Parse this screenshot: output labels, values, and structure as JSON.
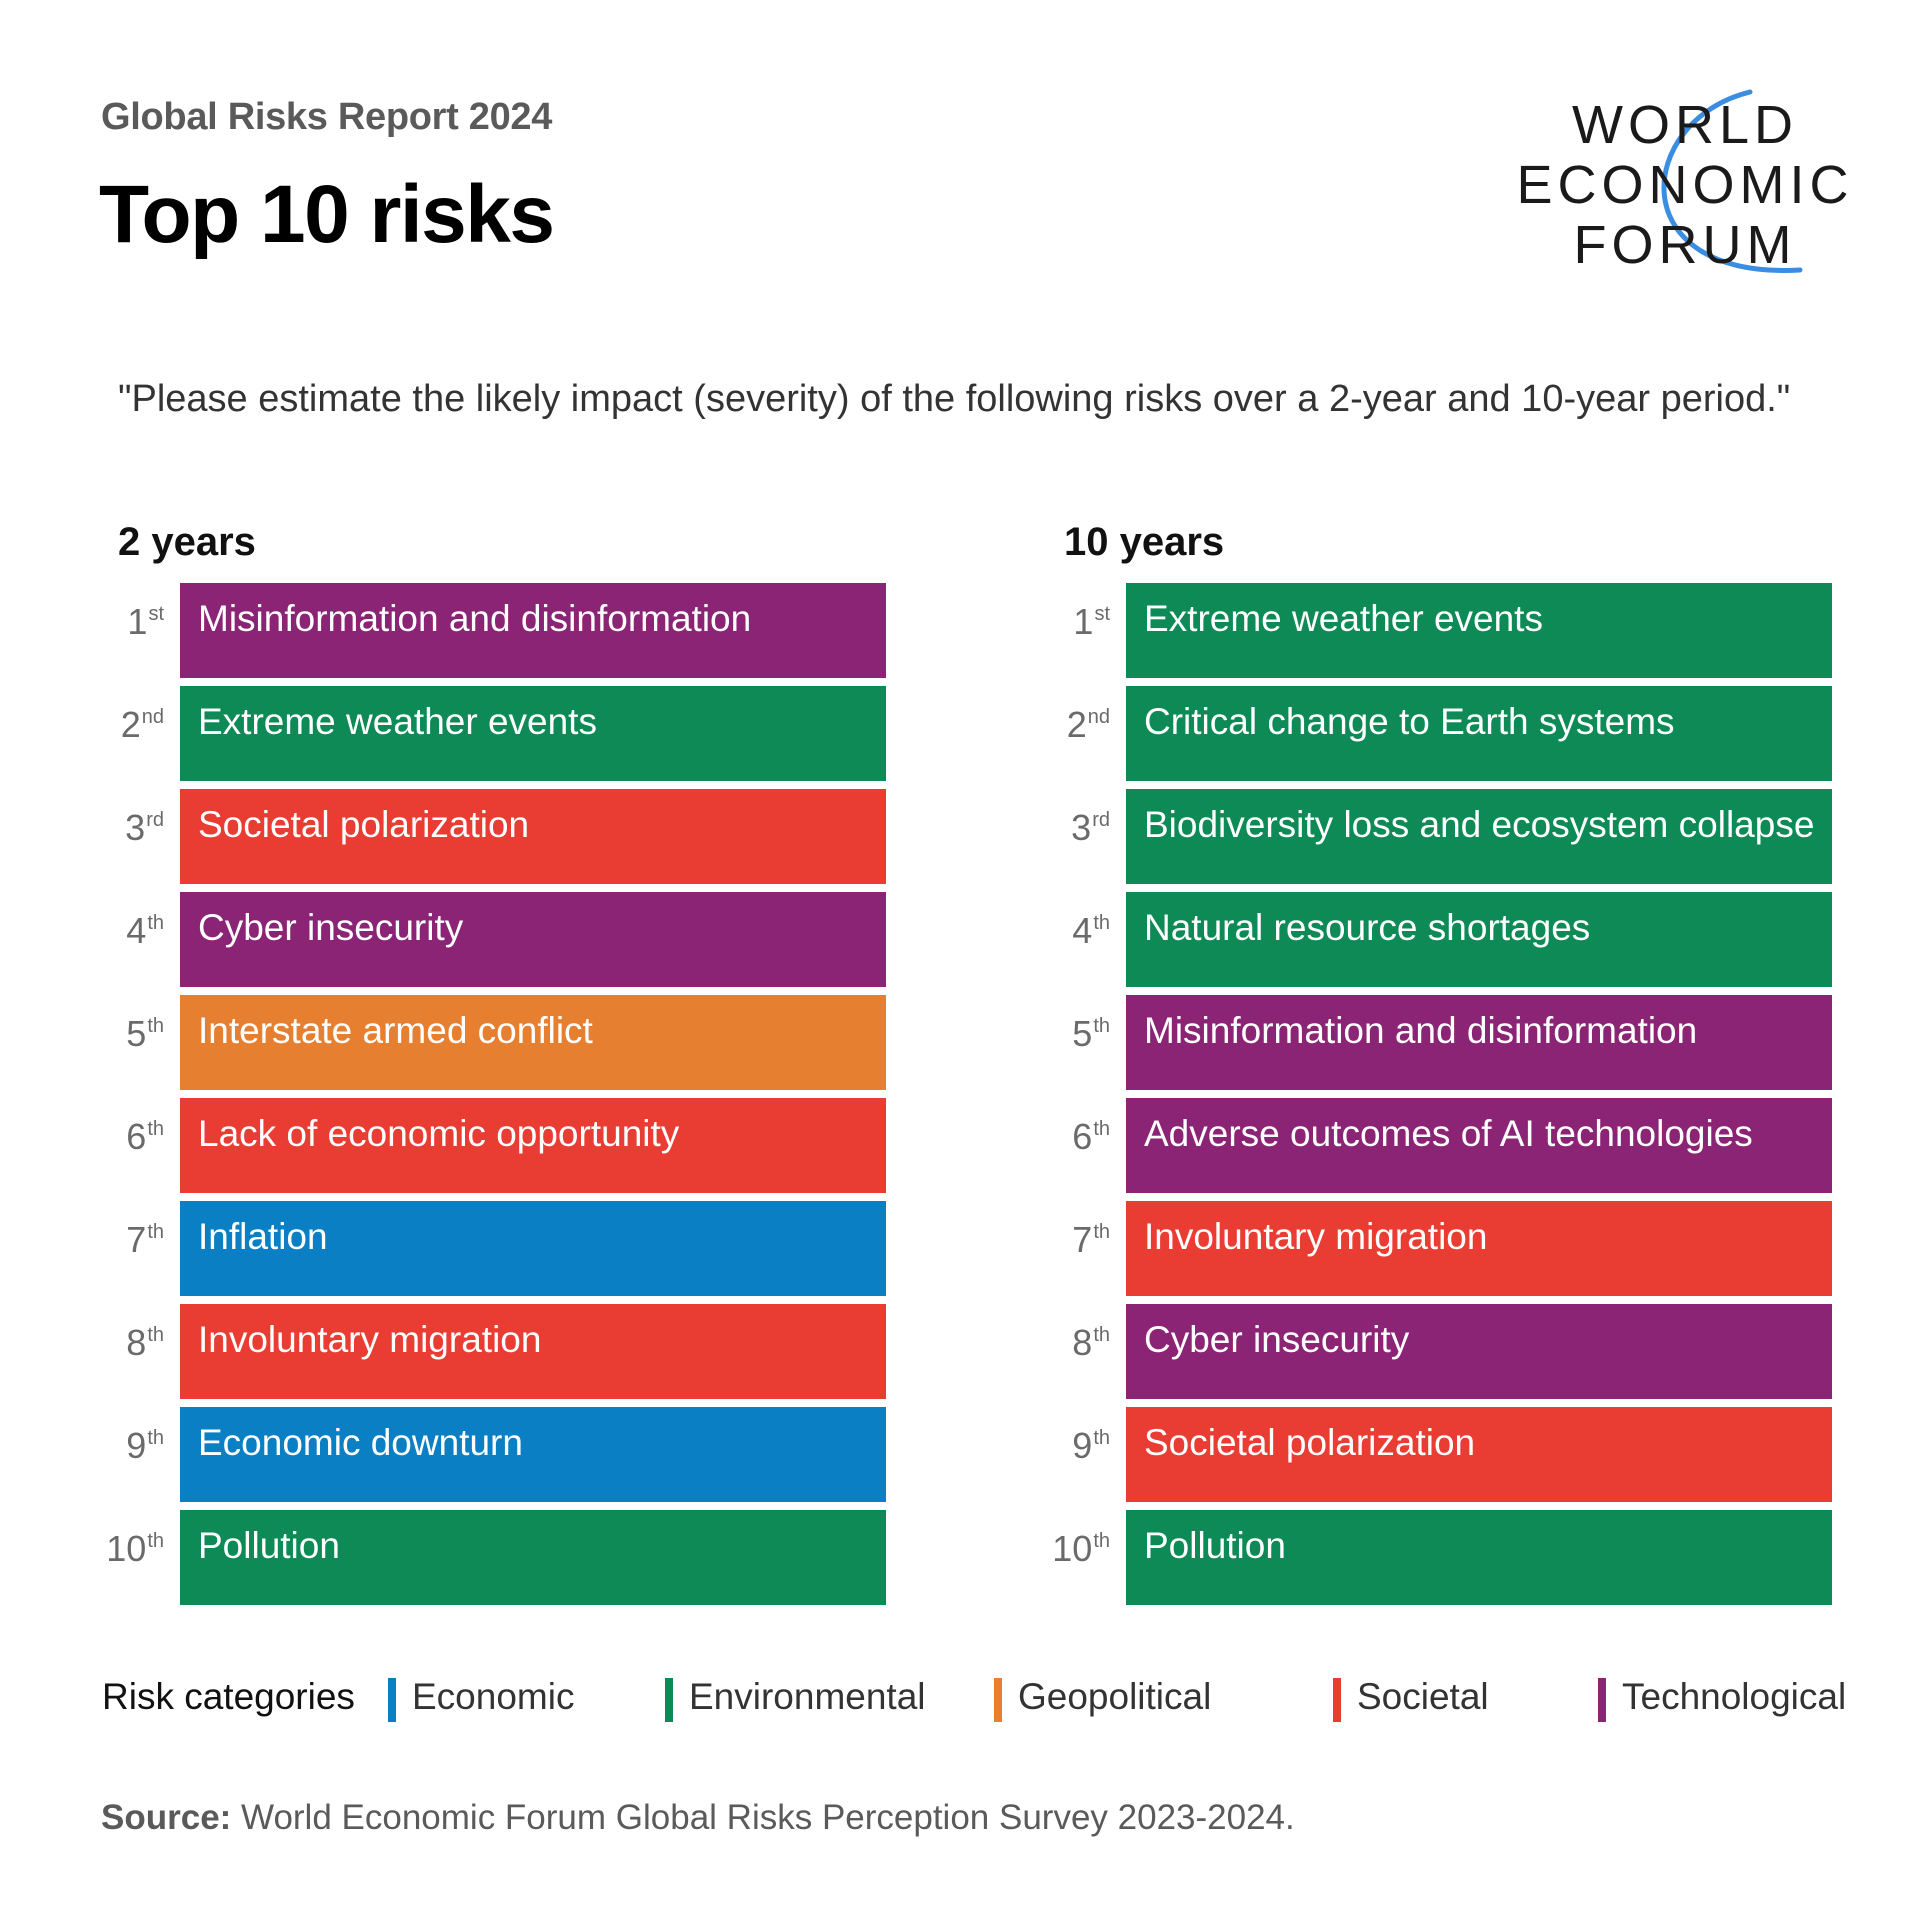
{
  "header": {
    "subtitle": "Global Risks Report 2024",
    "title": "Top 10 risks"
  },
  "logo": {
    "lines": [
      "WORLD",
      "ECONOMIC",
      "FORUM"
    ],
    "arc_color": "#3a8de0"
  },
  "question": "\"Please estimate the likely impact (severity) of the following risks over a 2-year and 10-year period.\"",
  "colors": {
    "Economic": "#0b7fc4",
    "Environmental": "#0d8a55",
    "Geopolitical": "#e77f31",
    "Societal": "#e93d33",
    "Technological": "#8b2475"
  },
  "columns": [
    {
      "heading": "2 years",
      "items": [
        {
          "rank": "1",
          "suffix": "st",
          "label": "Misinformation and disinformation",
          "category": "Technological"
        },
        {
          "rank": "2",
          "suffix": "nd",
          "label": "Extreme weather events",
          "category": "Environmental"
        },
        {
          "rank": "3",
          "suffix": "rd",
          "label": "Societal polarization",
          "category": "Societal"
        },
        {
          "rank": "4",
          "suffix": "th",
          "label": "Cyber insecurity",
          "category": "Technological"
        },
        {
          "rank": "5",
          "suffix": "th",
          "label": "Interstate armed conflict",
          "category": "Geopolitical"
        },
        {
          "rank": "6",
          "suffix": "th",
          "label": "Lack of economic opportunity",
          "category": "Societal"
        },
        {
          "rank": "7",
          "suffix": "th",
          "label": "Inflation",
          "category": "Economic"
        },
        {
          "rank": "8",
          "suffix": "th",
          "label": "Involuntary migration",
          "category": "Societal"
        },
        {
          "rank": "9",
          "suffix": "th",
          "label": "Economic downturn",
          "category": "Economic"
        },
        {
          "rank": "10",
          "suffix": "th",
          "label": "Pollution",
          "category": "Environmental"
        }
      ]
    },
    {
      "heading": "10 years",
      "items": [
        {
          "rank": "1",
          "suffix": "st",
          "label": "Extreme weather events",
          "category": "Environmental"
        },
        {
          "rank": "2",
          "suffix": "nd",
          "label": "Critical change to Earth systems",
          "category": "Environmental"
        },
        {
          "rank": "3",
          "suffix": "rd",
          "label": "Biodiversity loss and ecosystem collapse",
          "category": "Environmental"
        },
        {
          "rank": "4",
          "suffix": "th",
          "label": "Natural resource shortages",
          "category": "Environmental"
        },
        {
          "rank": "5",
          "suffix": "th",
          "label": "Misinformation and disinformation",
          "category": "Technological"
        },
        {
          "rank": "6",
          "suffix": "th",
          "label": "Adverse outcomes of AI technologies",
          "category": "Technological"
        },
        {
          "rank": "7",
          "suffix": "th",
          "label": "Involuntary migration",
          "category": "Societal"
        },
        {
          "rank": "8",
          "suffix": "th",
          "label": "Cyber insecurity",
          "category": "Technological"
        },
        {
          "rank": "9",
          "suffix": "th",
          "label": "Societal polarization",
          "category": "Societal"
        },
        {
          "rank": "10",
          "suffix": "th",
          "label": "Pollution",
          "category": "Environmental"
        }
      ]
    }
  ],
  "legend": {
    "title": "Risk categories",
    "items": [
      "Economic",
      "Environmental",
      "Geopolitical",
      "Societal",
      "Technological"
    ]
  },
  "source": {
    "label": "Source:",
    "text": " World Economic Forum Global Risks Perception Survey 2023-2024."
  }
}
